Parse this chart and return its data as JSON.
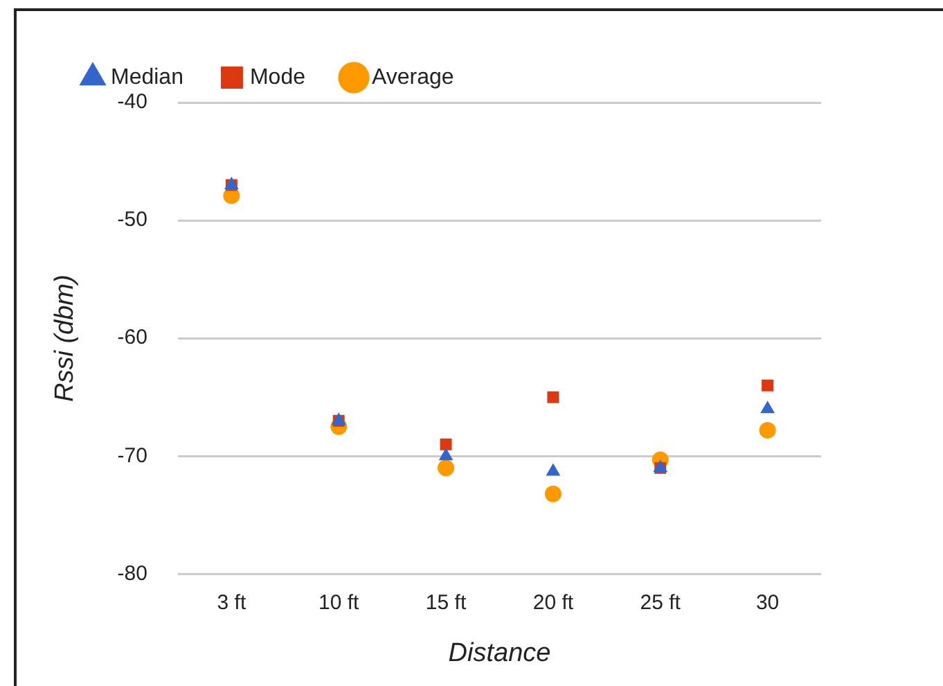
{
  "chart_data": {
    "type": "scatter",
    "xlabel": "Distance",
    "ylabel": "Rssi (dbm)",
    "categories": [
      "3 ft",
      "10 ft",
      "15 ft",
      "20 ft",
      "25 ft",
      "30"
    ],
    "series": [
      {
        "name": "Median",
        "color": "#3366cc",
        "marker": "triangle",
        "values": [
          -47,
          -67,
          -70,
          -71.3,
          -71,
          -66
        ]
      },
      {
        "name": "Mode",
        "color": "#dc3912",
        "marker": "square",
        "values": [
          -47,
          -67,
          -69,
          -65,
          -71,
          -64
        ]
      },
      {
        "name": "Average",
        "color": "#ff9900",
        "marker": "circle",
        "values": [
          -47.9,
          -67.5,
          -71,
          -73.2,
          -70.3,
          -67.8
        ]
      }
    ],
    "ylim": [
      -80,
      -40
    ],
    "yticks": [
      -40,
      -50,
      -60,
      -70,
      -80
    ],
    "grid": "y",
    "legend": "top left"
  }
}
